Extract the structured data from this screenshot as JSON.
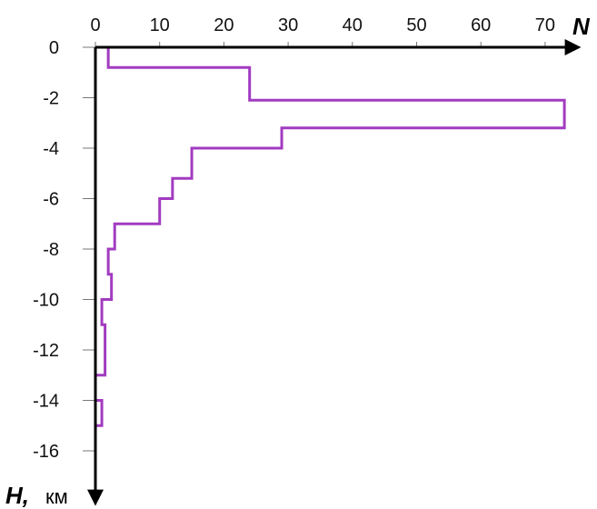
{
  "chart_data": {
    "type": "line",
    "style": "vertical step profile",
    "x_axis": {
      "label": "N",
      "position": "top",
      "range": [
        0,
        72
      ],
      "ticks": [
        0,
        10,
        20,
        30,
        40,
        50,
        60,
        70
      ],
      "tick_labels": [
        "0",
        "10",
        "20",
        "30",
        "40",
        "50",
        "60",
        "70"
      ]
    },
    "y_axis": {
      "label": "H,",
      "unit": "км",
      "range": [
        0,
        -16.5
      ],
      "direction": "downward",
      "ticks": [
        0,
        -2,
        -4,
        -6,
        -8,
        -10,
        -12,
        -14,
        -16
      ],
      "tick_labels": [
        "0",
        "-2",
        "-4",
        "-6",
        "-8",
        "-10",
        "-12",
        "-14",
        "-16"
      ]
    },
    "grid": false,
    "series": [
      {
        "color": "#a23bc0",
        "steps": [
          {
            "h_from": 0.0,
            "h_to": -0.8,
            "n": 2
          },
          {
            "h_from": -0.8,
            "h_to": -2.1,
            "n": 24
          },
          {
            "h_from": -2.1,
            "h_to": -3.2,
            "n": 73
          },
          {
            "h_from": -3.2,
            "h_to": -4.0,
            "n": 29
          },
          {
            "h_from": -4.0,
            "h_to": -5.2,
            "n": 15
          },
          {
            "h_from": -5.2,
            "h_to": -6.0,
            "n": 12
          },
          {
            "h_from": -6.0,
            "h_to": -7.0,
            "n": 10
          },
          {
            "h_from": -7.0,
            "h_to": -8.0,
            "n": 3
          },
          {
            "h_from": -8.0,
            "h_to": -9.0,
            "n": 2
          },
          {
            "h_from": -9.0,
            "h_to": -10.0,
            "n": 2.5
          },
          {
            "h_from": -10.0,
            "h_to": -11.0,
            "n": 1
          },
          {
            "h_from": -11.0,
            "h_to": -13.0,
            "n": 1.5
          },
          {
            "h_from": -13.0,
            "h_to": -14.0,
            "n": 0
          },
          {
            "h_from": -14.0,
            "h_to": -15.0,
            "n": 1
          },
          {
            "h_from": -15.0,
            "h_to": -16.5,
            "n": 0
          }
        ]
      }
    ]
  }
}
